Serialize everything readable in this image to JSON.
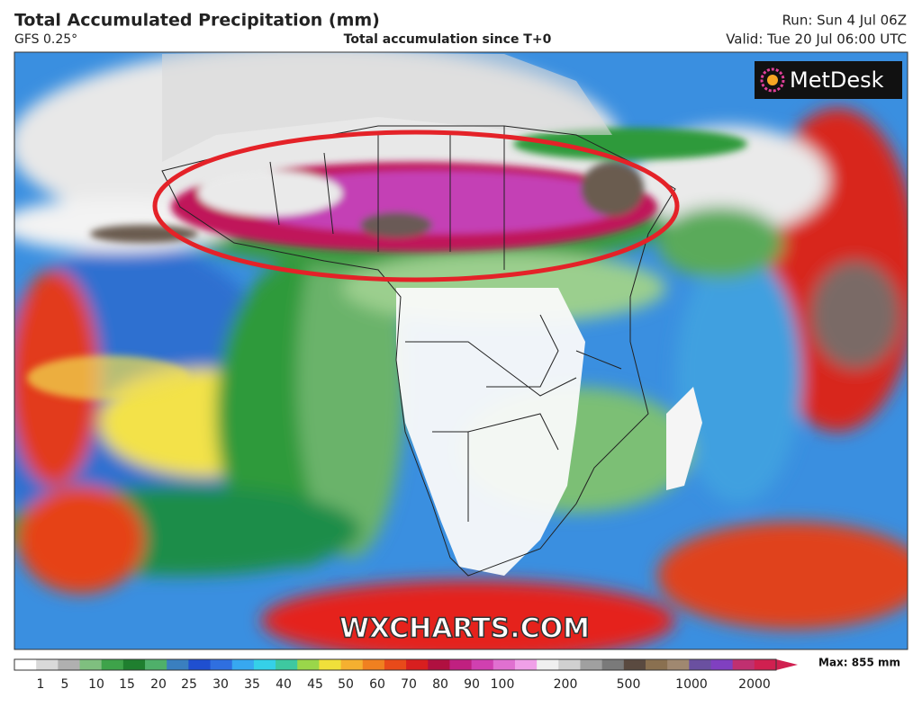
{
  "header": {
    "title": "Total Accumulated Precipitation (mm)",
    "model": "GFS 0.25°",
    "subtitle": "Total accumulation since T+0",
    "run": "Run: Sun 4 Jul 06Z",
    "valid": "Valid: Tue 20 Jul 06:00 UTC"
  },
  "logo": "MetDesk",
  "watermark": "WXCHARTS.COM",
  "colorbar": {
    "ticks": [
      1,
      5,
      10,
      15,
      20,
      25,
      30,
      35,
      40,
      45,
      50,
      60,
      70,
      80,
      90,
      100,
      200,
      500,
      1000,
      2000
    ],
    "max_label": "Max: 855 mm"
  }
}
